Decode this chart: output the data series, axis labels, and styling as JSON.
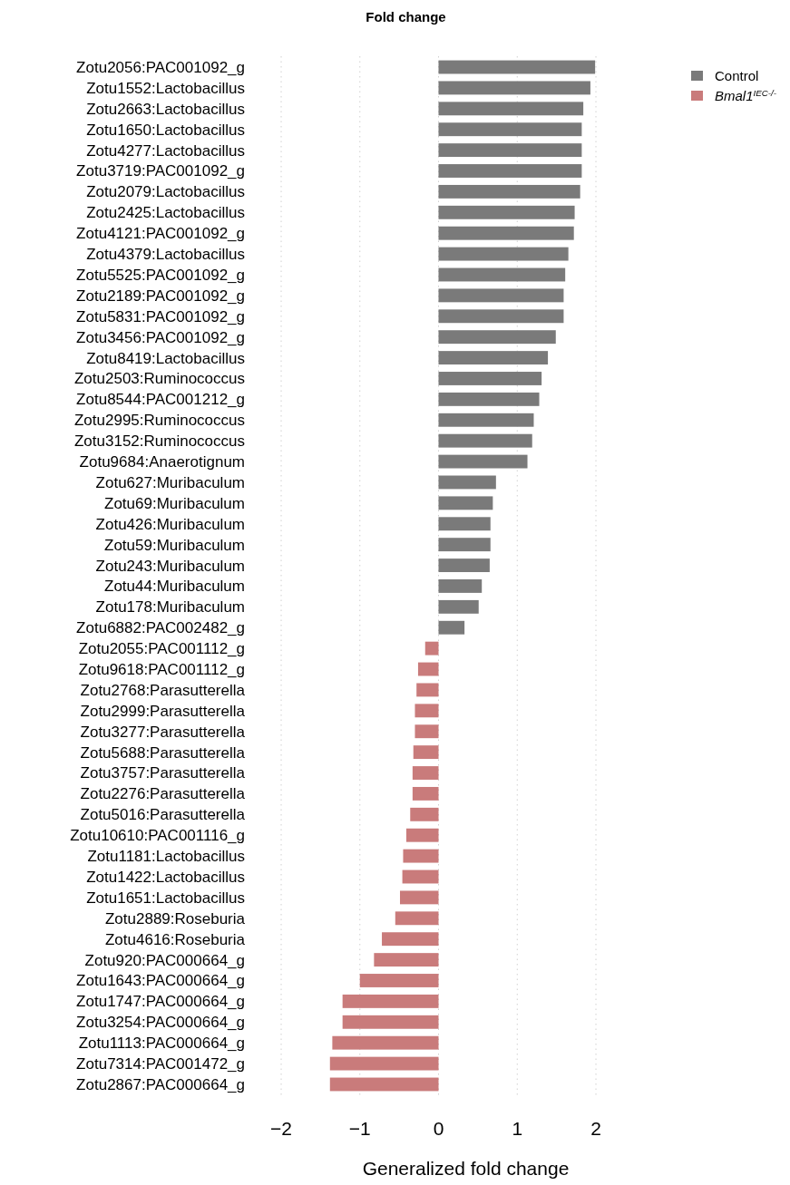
{
  "chart_data": {
    "type": "bar",
    "orientation": "horizontal",
    "title": "Fold change",
    "xlabel": "Generalized fold change",
    "categories": [
      "Zotu2056:PAC001092_g",
      "Zotu1552:Lactobacillus",
      "Zotu2663:Lactobacillus",
      "Zotu1650:Lactobacillus",
      "Zotu4277:Lactobacillus",
      "Zotu3719:PAC001092_g",
      "Zotu2079:Lactobacillus",
      "Zotu2425:Lactobacillus",
      "Zotu4121:PAC001092_g",
      "Zotu4379:Lactobacillus",
      "Zotu5525:PAC001092_g",
      "Zotu2189:PAC001092_g",
      "Zotu5831:PAC001092_g",
      "Zotu3456:PAC001092_g",
      "Zotu8419:Lactobacillus",
      "Zotu2503:Ruminococcus",
      "Zotu8544:PAC001212_g",
      "Zotu2995:Ruminococcus",
      "Zotu3152:Ruminococcus",
      "Zotu9684:Anaerotignum",
      "Zotu627:Muribaculum",
      "Zotu69:Muribaculum",
      "Zotu426:Muribaculum",
      "Zotu59:Muribaculum",
      "Zotu243:Muribaculum",
      "Zotu44:Muribaculum",
      "Zotu178:Muribaculum",
      "Zotu6882:PAC002482_g",
      "Zotu2055:PAC001112_g",
      "Zotu9618:PAC001112_g",
      "Zotu2768:Parasutterella",
      "Zotu2999:Parasutterella",
      "Zotu3277:Parasutterella",
      "Zotu5688:Parasutterella",
      "Zotu3757:Parasutterella",
      "Zotu2276:Parasutterella",
      "Zotu5016:Parasutterella",
      "Zotu10610:PAC001116_g",
      "Zotu1181:Lactobacillus",
      "Zotu1422:Lactobacillus",
      "Zotu1651:Lactobacillus",
      "Zotu2889:Roseburia",
      "Zotu4616:Roseburia",
      "Zotu920:PAC000664_g",
      "Zotu1643:PAC000664_g",
      "Zotu1747:PAC000664_g",
      "Zotu3254:PAC000664_g",
      "Zotu1113:PAC000664_g",
      "Zotu7314:PAC001472_g",
      "Zotu2867:PAC000664_g"
    ],
    "series": [
      {
        "name": "Control",
        "color": "#7a7a7a",
        "values": [
          1.99,
          1.93,
          1.84,
          1.82,
          1.82,
          1.82,
          1.8,
          1.73,
          1.72,
          1.65,
          1.61,
          1.59,
          1.59,
          1.49,
          1.39,
          1.31,
          1.28,
          1.21,
          1.19,
          1.13,
          0.73,
          0.69,
          0.66,
          0.66,
          0.65,
          0.55,
          0.51,
          0.33,
          null,
          null,
          null,
          null,
          null,
          null,
          null,
          null,
          null,
          null,
          null,
          null,
          null,
          null,
          null,
          null,
          null,
          null,
          null,
          null,
          null,
          null
        ]
      },
      {
        "name": "Bmal1$^{IEC-/-}$",
        "color": "#c97b7b",
        "values": [
          null,
          null,
          null,
          null,
          null,
          null,
          null,
          null,
          null,
          null,
          null,
          null,
          null,
          null,
          null,
          null,
          null,
          null,
          null,
          null,
          null,
          null,
          null,
          null,
          null,
          null,
          null,
          null,
          -0.17,
          -0.26,
          -0.28,
          -0.3,
          -0.3,
          -0.32,
          -0.33,
          -0.33,
          -0.36,
          -0.41,
          -0.45,
          -0.46,
          -0.49,
          -0.55,
          -0.72,
          -0.82,
          -1.0,
          -1.22,
          -1.22,
          -1.35,
          -1.38,
          -1.38
        ]
      }
    ],
    "xlim": [
      -2,
      2
    ],
    "xticks": [
      {
        "value": -2,
        "label": "−2"
      },
      {
        "value": -1,
        "label": "−1"
      },
      0,
      1,
      2
    ],
    "grid": "x",
    "legend": "top right"
  }
}
